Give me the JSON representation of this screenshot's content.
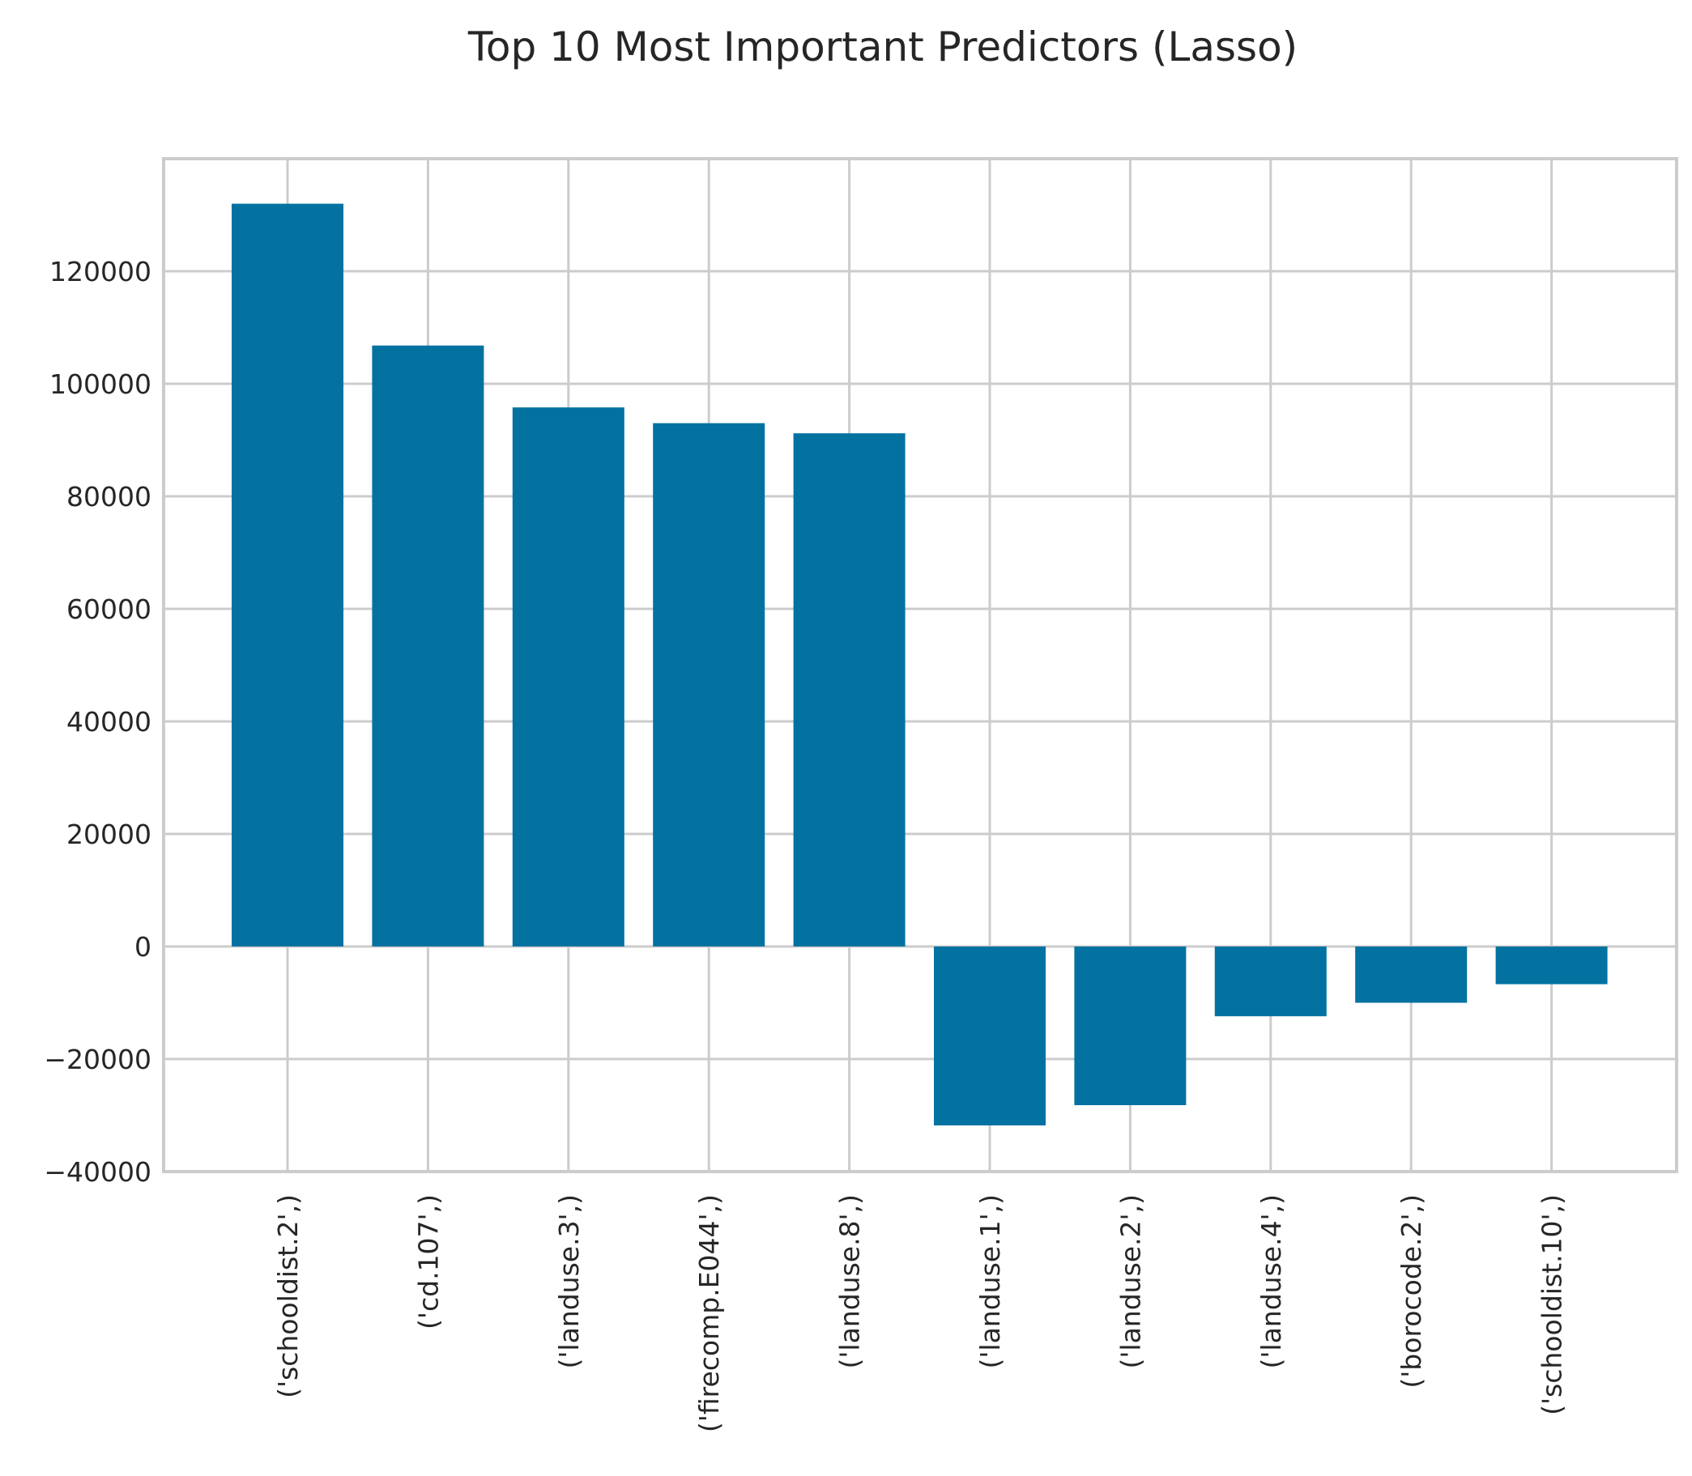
{
  "chart_data": {
    "type": "bar",
    "title": "Top 10 Most Important Predictors (Lasso)",
    "xlabel": "",
    "ylabel": "",
    "categories": [
      "('schooldist.2',)",
      "('cd.107',)",
      "('landuse.3',)",
      "('firecomp.E044',)",
      "('landuse.8',)",
      "('landuse.1',)",
      "('landuse.2',)",
      "('landuse.4',)",
      "('borocode.2',)",
      "('schooldist.10',)"
    ],
    "values": [
      132000,
      106800,
      95800,
      93000,
      91200,
      -31800,
      -28200,
      -12400,
      -10000,
      -6700
    ],
    "ylim": [
      -40000,
      140000
    ],
    "yticks": [
      -40000,
      -20000,
      0,
      20000,
      40000,
      60000,
      80000,
      100000,
      120000
    ],
    "ytick_labels": [
      "−40000",
      "−20000",
      "0",
      "20000",
      "40000",
      "60000",
      "80000",
      "100000",
      "120000"
    ],
    "bar_color": "#0372a1",
    "grid": true,
    "legend": "none"
  }
}
